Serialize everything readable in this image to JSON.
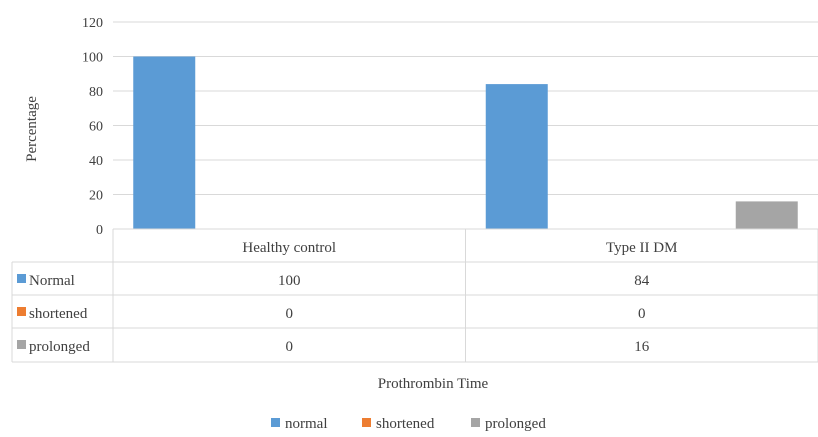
{
  "chart_data": {
    "type": "bar",
    "title": "",
    "xlabel": "Prothrombin Time",
    "ylabel": "Percentage",
    "ylim": [
      0,
      120
    ],
    "yticks": [
      0,
      20,
      40,
      60,
      80,
      100,
      120
    ],
    "grid": true,
    "categories": [
      "Healthy control",
      "Type II DM"
    ],
    "series": [
      {
        "name": "normal",
        "table_label": "Normal",
        "color": "#5b9bd5",
        "values": [
          100,
          84
        ]
      },
      {
        "name": "shortened",
        "table_label": "shortened",
        "color": "#ed7d31",
        "values": [
          0,
          0
        ]
      },
      {
        "name": "prolonged",
        "table_label": "prolonged",
        "color": "#a5a5a5",
        "values": [
          0,
          16
        ]
      }
    ],
    "data_table": true,
    "legend_position": "bottom"
  }
}
